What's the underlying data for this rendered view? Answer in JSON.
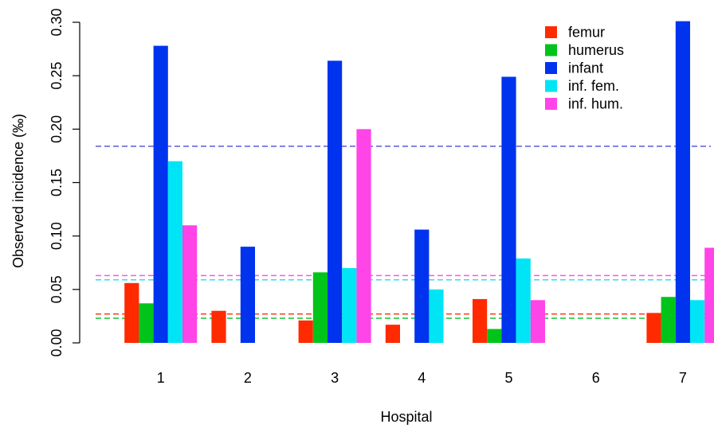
{
  "chart_data": {
    "type": "bar",
    "xlabel": "Hospital",
    "ylabel": "Observed incidence (‰)",
    "categories": [
      "1",
      "2",
      "3",
      "4",
      "5",
      "6",
      "7"
    ],
    "ylim": [
      0,
      0.3
    ],
    "yticks": [
      "0.00",
      "0.05",
      "0.10",
      "0.15",
      "0.20",
      "0.25",
      "0.30"
    ],
    "grid": false,
    "legend_position": "top-right",
    "series": [
      {
        "name": "femur",
        "color": "#ff2a00",
        "values": [
          0.056,
          0.03,
          0.021,
          0.017,
          0.041,
          0.0,
          0.028
        ]
      },
      {
        "name": "humerus",
        "color": "#00c41a",
        "values": [
          0.037,
          0.0,
          0.066,
          0.0,
          0.013,
          0.0,
          0.043
        ]
      },
      {
        "name": "infant",
        "color": "#0033ee",
        "values": [
          0.278,
          0.09,
          0.264,
          0.106,
          0.249,
          0.0,
          0.301
        ]
      },
      {
        "name": "inf. fem.",
        "color": "#00e5f5",
        "values": [
          0.17,
          0.0,
          0.07,
          0.05,
          0.079,
          0.0,
          0.04
        ]
      },
      {
        "name": "inf. hum.",
        "color": "#ff44e8",
        "values": [
          0.11,
          0.0,
          0.2,
          0.0,
          0.04,
          0.0,
          0.089
        ]
      }
    ],
    "reference_lines": [
      {
        "series": "infant",
        "value": 0.184,
        "color": "#6666dd",
        "style": "dashed"
      },
      {
        "series": "inf. hum.",
        "value": 0.063,
        "color": "#ff55ee",
        "style": "dashed"
      },
      {
        "series": "inf. fem.",
        "value": 0.059,
        "color": "#33ddee",
        "style": "dashed"
      },
      {
        "series": "femur",
        "value": 0.027,
        "color": "#ff4422",
        "style": "dashed"
      },
      {
        "series": "humerus",
        "value": 0.023,
        "color": "#22cc44",
        "style": "dashed"
      }
    ]
  }
}
